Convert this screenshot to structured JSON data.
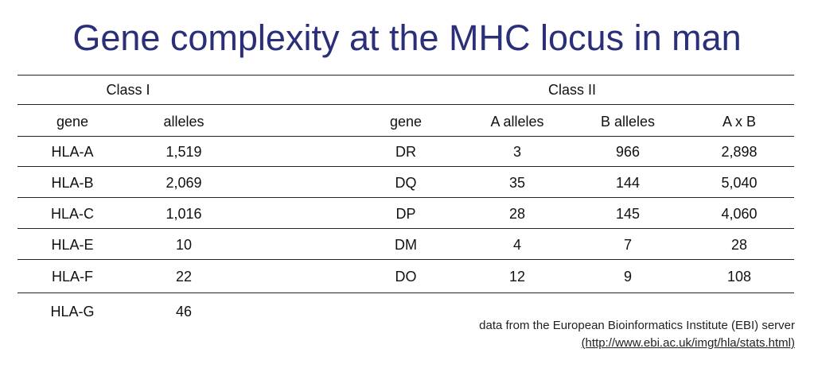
{
  "title": "Gene complexity at the MHC locus in man",
  "class_i": {
    "heading": "Class I",
    "columns": [
      "gene",
      "alleles"
    ],
    "rows": [
      [
        "HLA-A",
        "1,519"
      ],
      [
        "HLA-B",
        "2,069"
      ],
      [
        "HLA-C",
        "1,016"
      ],
      [
        "HLA-E",
        "10"
      ],
      [
        "HLA-F",
        "22"
      ],
      [
        "HLA-G",
        "46"
      ]
    ]
  },
  "class_ii": {
    "heading": "Class II",
    "columns": [
      "gene",
      "A alleles",
      "B alleles",
      "A x B"
    ],
    "rows": [
      [
        "DR",
        "3",
        "966",
        "2,898"
      ],
      [
        "DQ",
        "35",
        "144",
        "5,040"
      ],
      [
        "DP",
        "28",
        "145",
        "4,060"
      ],
      [
        "DM",
        "4",
        "7",
        "28"
      ],
      [
        "DO",
        "12",
        "9",
        "108"
      ]
    ]
  },
  "source": {
    "line1": "data from the European Bioinformatics Institute (EBI) server",
    "line2": "(http://www.ebi.ac.uk/imgt/hla/stats.html)"
  }
}
